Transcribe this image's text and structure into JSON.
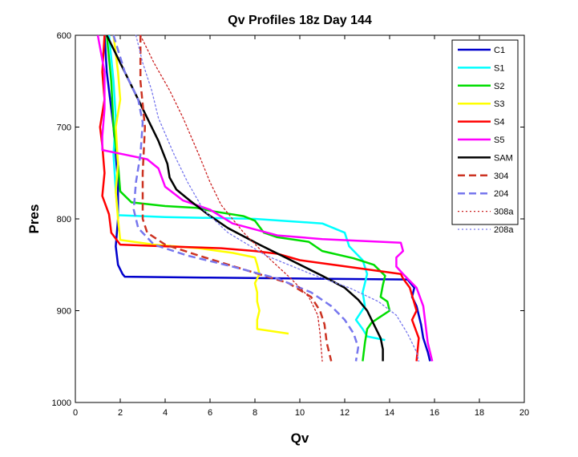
{
  "chart_data": {
    "type": "line",
    "title": "Qv Profiles 18z Day 144",
    "xlabel": "Qv",
    "ylabel": "Pres",
    "xlim": [
      0,
      20
    ],
    "ylim": [
      600,
      1000
    ],
    "y_reversed": true,
    "x_ticks": [
      0,
      2,
      4,
      6,
      8,
      10,
      12,
      14,
      16,
      18,
      20
    ],
    "y_ticks": [
      600,
      700,
      800,
      900,
      1000
    ],
    "grid": false,
    "legend_position": "top-right",
    "series": [
      {
        "name": "C1",
        "color": "#0000cc",
        "style": "solid",
        "width": 2.5,
        "points": [
          [
            1.3,
            600
          ],
          [
            1.4,
            640
          ],
          [
            1.7,
            700
          ],
          [
            1.9,
            760
          ],
          [
            1.9,
            800
          ],
          [
            1.8,
            830
          ],
          [
            1.9,
            850
          ],
          [
            2.1,
            860
          ],
          [
            2.2,
            863
          ],
          [
            6,
            864
          ],
          [
            10,
            865
          ],
          [
            14.8,
            866
          ],
          [
            15.1,
            875
          ],
          [
            15,
            885
          ],
          [
            15.2,
            895
          ],
          [
            15.4,
            915
          ],
          [
            15.5,
            930
          ],
          [
            15.7,
            945
          ],
          [
            15.8,
            955
          ]
        ]
      },
      {
        "name": "S1",
        "color": "#00ffff",
        "style": "solid",
        "width": 2.5,
        "points": [
          [
            1.5,
            600
          ],
          [
            1.7,
            650
          ],
          [
            1.8,
            690
          ],
          [
            1.7,
            730
          ],
          [
            1.8,
            770
          ],
          [
            1.9,
            796
          ],
          [
            4,
            798
          ],
          [
            8,
            800
          ],
          [
            11,
            805
          ],
          [
            12,
            815
          ],
          [
            12.2,
            830
          ],
          [
            12.8,
            845
          ],
          [
            13,
            860
          ],
          [
            12.8,
            880
          ],
          [
            12.9,
            895
          ],
          [
            12.5,
            910
          ],
          [
            12.8,
            920
          ],
          [
            13,
            928
          ],
          [
            13.8,
            932
          ]
        ]
      },
      {
        "name": "S2",
        "color": "#00dd00",
        "style": "solid",
        "width": 2.5,
        "points": [
          [
            1.4,
            600
          ],
          [
            1.6,
            650
          ],
          [
            1.7,
            700
          ],
          [
            1.9,
            740
          ],
          [
            2,
            770
          ],
          [
            2.5,
            782
          ],
          [
            4,
            786
          ],
          [
            5.4,
            788
          ],
          [
            6.2,
            792
          ],
          [
            7.5,
            797
          ],
          [
            8,
            802
          ],
          [
            8.4,
            815
          ],
          [
            9,
            820
          ],
          [
            10.4,
            825
          ],
          [
            11,
            835
          ],
          [
            12.4,
            843
          ],
          [
            13.3,
            850
          ],
          [
            13.8,
            862
          ],
          [
            13.7,
            872
          ],
          [
            13.6,
            885
          ],
          [
            13.9,
            890
          ],
          [
            14,
            900
          ],
          [
            13.5,
            908
          ],
          [
            13.2,
            913
          ],
          [
            13,
            920
          ],
          [
            12.9,
            935
          ],
          [
            12.8,
            955
          ]
        ]
      },
      {
        "name": "S3",
        "color": "#ffff00",
        "style": "solid",
        "width": 2.5,
        "points": [
          [
            1.7,
            600
          ],
          [
            1.9,
            640
          ],
          [
            2,
            670
          ],
          [
            1.8,
            700
          ],
          [
            1.9,
            740
          ],
          [
            1.8,
            770
          ],
          [
            1.9,
            800
          ],
          [
            2,
            823
          ],
          [
            3.5,
            828
          ],
          [
            5.5,
            832
          ],
          [
            7,
            837
          ],
          [
            8,
            842
          ],
          [
            8.1,
            850
          ],
          [
            8.2,
            860
          ],
          [
            8,
            870
          ],
          [
            8.1,
            880
          ],
          [
            8.1,
            890
          ],
          [
            8.2,
            900
          ],
          [
            8.1,
            910
          ],
          [
            8.1,
            920
          ],
          [
            9.5,
            925
          ]
        ]
      },
      {
        "name": "S4",
        "color": "#ff0000",
        "style": "solid",
        "width": 2.5,
        "points": [
          [
            1.3,
            600
          ],
          [
            1.2,
            640
          ],
          [
            1.3,
            670
          ],
          [
            1.1,
            700
          ],
          [
            1.2,
            720
          ],
          [
            1.3,
            750
          ],
          [
            1.2,
            775
          ],
          [
            1.5,
            795
          ],
          [
            1.6,
            815
          ],
          [
            2,
            828
          ],
          [
            4,
            830
          ],
          [
            6.5,
            832
          ],
          [
            8,
            835
          ],
          [
            9,
            838
          ],
          [
            10,
            845
          ],
          [
            11.5,
            850
          ],
          [
            13,
            855
          ],
          [
            14.5,
            860
          ],
          [
            14.6,
            865
          ],
          [
            14.9,
            875
          ],
          [
            15.2,
            900
          ],
          [
            15,
            910
          ],
          [
            15.3,
            930
          ],
          [
            15.2,
            955
          ]
        ]
      },
      {
        "name": "S5",
        "color": "#ff00ff",
        "style": "solid",
        "width": 2.5,
        "points": [
          [
            1.0,
            600
          ],
          [
            1.3,
            640
          ],
          [
            1.3,
            680
          ],
          [
            1.2,
            710
          ],
          [
            1.2,
            725
          ],
          [
            2.2,
            730
          ],
          [
            3.2,
            735
          ],
          [
            3.7,
            745
          ],
          [
            4,
            765
          ],
          [
            4.8,
            780
          ],
          [
            6,
            790
          ],
          [
            7,
            805
          ],
          [
            9,
            818
          ],
          [
            11,
            822
          ],
          [
            14.5,
            826
          ],
          [
            14.6,
            835
          ],
          [
            14.3,
            842
          ],
          [
            14.3,
            852
          ],
          [
            14.6,
            860
          ],
          [
            15.2,
            875
          ],
          [
            15.5,
            895
          ],
          [
            15.6,
            915
          ],
          [
            15.7,
            935
          ],
          [
            15.9,
            955
          ]
        ]
      },
      {
        "name": "SAM",
        "color": "#000000",
        "style": "solid",
        "width": 2.5,
        "points": [
          [
            1.4,
            600
          ],
          [
            1.8,
            620
          ],
          [
            2.2,
            640
          ],
          [
            2.6,
            660
          ],
          [
            3,
            680
          ],
          [
            3.3,
            695
          ],
          [
            3.7,
            715
          ],
          [
            4.1,
            740
          ],
          [
            4.2,
            755
          ],
          [
            4.5,
            768
          ],
          [
            5.1,
            780
          ],
          [
            5.9,
            795
          ],
          [
            6.8,
            810
          ],
          [
            8.2,
            828
          ],
          [
            9.6,
            845
          ],
          [
            11,
            862
          ],
          [
            12,
            875
          ],
          [
            12.6,
            888
          ],
          [
            13,
            900
          ],
          [
            13.3,
            915
          ],
          [
            13.6,
            930
          ],
          [
            13.7,
            942
          ],
          [
            13.7,
            955
          ]
        ]
      },
      {
        "name": "304",
        "color": "#cc3322",
        "style": "dashed",
        "width": 2.5,
        "points": [
          [
            2.9,
            600
          ],
          [
            2.9,
            650
          ],
          [
            3.1,
            700
          ],
          [
            3.0,
            750
          ],
          [
            3.0,
            780
          ],
          [
            3.0,
            800
          ],
          [
            3.2,
            815
          ],
          [
            4,
            828
          ],
          [
            5.5,
            840
          ],
          [
            7.5,
            855
          ],
          [
            9.5,
            870
          ],
          [
            10.5,
            885
          ],
          [
            10.9,
            900
          ],
          [
            11.1,
            915
          ],
          [
            11.2,
            935
          ],
          [
            11.4,
            955
          ]
        ]
      },
      {
        "name": "204",
        "color": "#7777ee",
        "style": "dashed",
        "width": 2.5,
        "points": [
          [
            1.7,
            600
          ],
          [
            2.2,
            640
          ],
          [
            2.8,
            670
          ],
          [
            3,
            695
          ],
          [
            2.9,
            730
          ],
          [
            2.7,
            760
          ],
          [
            2.6,
            790
          ],
          [
            2.8,
            810
          ],
          [
            3.5,
            828
          ],
          [
            5,
            840
          ],
          [
            7,
            852
          ],
          [
            9,
            865
          ],
          [
            10.5,
            880
          ],
          [
            11.4,
            895
          ],
          [
            12,
            910
          ],
          [
            12.4,
            925
          ],
          [
            12.6,
            940
          ],
          [
            12.5,
            955
          ]
        ]
      },
      {
        "name": "308a",
        "color": "#cc2222",
        "style": "dotted",
        "width": 1.3,
        "points": [
          [
            2.9,
            600
          ],
          [
            3.5,
            630
          ],
          [
            4.2,
            660
          ],
          [
            4.8,
            690
          ],
          [
            5.5,
            730
          ],
          [
            6,
            760
          ],
          [
            6.5,
            785
          ],
          [
            7.5,
            815
          ],
          [
            8.5,
            840
          ],
          [
            9.6,
            865
          ],
          [
            10.4,
            885
          ],
          [
            10.8,
            905
          ],
          [
            10.9,
            925
          ],
          [
            11,
            955
          ]
        ]
      },
      {
        "name": "208a",
        "color": "#7777ee",
        "style": "dotted",
        "width": 1.3,
        "points": [
          [
            2.7,
            600
          ],
          [
            3,
            630
          ],
          [
            3.4,
            660
          ],
          [
            3.7,
            690
          ],
          [
            4.4,
            730
          ],
          [
            5,
            760
          ],
          [
            5.7,
            790
          ],
          [
            6.8,
            815
          ],
          [
            8.5,
            840
          ],
          [
            10.5,
            860
          ],
          [
            12.2,
            875
          ],
          [
            13.5,
            890
          ],
          [
            14.3,
            905
          ],
          [
            14.8,
            925
          ],
          [
            15.2,
            945
          ],
          [
            15.3,
            955
          ]
        ]
      }
    ]
  }
}
